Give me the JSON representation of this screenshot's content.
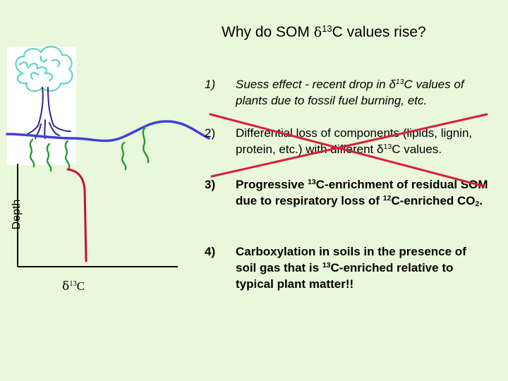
{
  "title": {
    "prefix": "Why do SOM ",
    "symbol": "δ",
    "superscript": "13",
    "suffix": "C values rise?"
  },
  "diagram": {
    "y_axis_label": "Depth",
    "x_axis_label": {
      "symbol": "δ",
      "superscript": "13",
      "suffix": "C"
    }
  },
  "list": [
    {
      "number": "1)",
      "parts": [
        "Suess effect - recent drop in δ",
        "13",
        "C values of plants due to fossil fuel burning, etc."
      ],
      "crossed_out": true
    },
    {
      "number": "2)",
      "parts": [
        "Differential loss of components (lipids, lignin, protein, etc.) with different δ",
        "13",
        "C values."
      ],
      "crossed_out": true
    },
    {
      "number": "3)",
      "parts": [
        "Progressive ",
        "13",
        "C-enrichment of residual SOM due to respiratory loss of ",
        "12",
        "C-enriched CO",
        "2",
        "."
      ],
      "crossed_out": false
    },
    {
      "number": "4)",
      "parts": [
        "Carboxylation in soils in the presence of soil gas that is ",
        "13",
        "C-enriched relative to typical plant matter!!"
      ],
      "crossed_out": false
    }
  ],
  "colors": {
    "background": "#e9f7da",
    "hill": "#3f3fd9",
    "roots": "#1e9e2e",
    "tree_canopy": "#5fd3c8",
    "trunk": "#2a2a8a",
    "profile_curve": "#c8102e",
    "crossout": "#d6203a"
  }
}
